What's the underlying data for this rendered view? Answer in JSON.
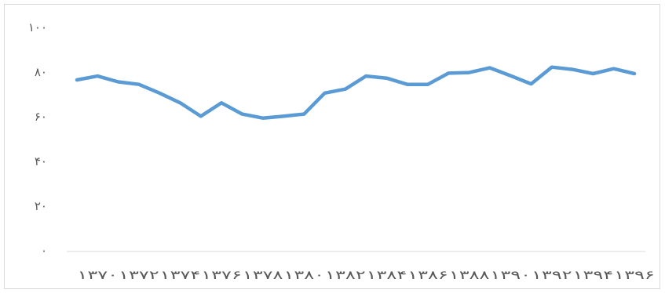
{
  "chart_data": {
    "type": "line",
    "title": "",
    "xlabel": "",
    "ylabel": "",
    "ylim": [
      0,
      100
    ],
    "yticks": [
      "۰",
      "۲۰",
      "۴۰",
      "۶۰",
      "۸۰",
      "۱۰۰"
    ],
    "ytick_values": [
      0,
      20,
      40,
      60,
      80,
      100
    ],
    "x": [
      1370,
      1371,
      1372,
      1373,
      1374,
      1375,
      1376,
      1377,
      1378,
      1379,
      1380,
      1381,
      1382,
      1383,
      1384,
      1385,
      1386,
      1387,
      1388,
      1389,
      1390,
      1391,
      1392,
      1393,
      1394,
      1395,
      1396,
      1397
    ],
    "xtick_labels": [
      "۱۳۷۰",
      "۱۳۷۲",
      "۱۳۷۴",
      "۱۳۷۶",
      "۱۳۷۸",
      "۱۳۸۰",
      "۱۳۸۲",
      "۱۳۸۴",
      "۱۳۸۶",
      "۱۳۸۸",
      "۱۳۹۰",
      "۱۳۹۲",
      "۱۳۹۴",
      "۱۳۹۶"
    ],
    "xtick_values": [
      1370,
      1372,
      1374,
      1376,
      1378,
      1380,
      1382,
      1384,
      1386,
      1388,
      1390,
      1392,
      1394,
      1396
    ],
    "series": [
      {
        "values": [
          76.5,
          78.2,
          75.6,
          74.5,
          70.6,
          66.2,
          60.2,
          66.2,
          61.2,
          59.4,
          60.2,
          61.2,
          70.6,
          72.4,
          78.2,
          77.3,
          74.5,
          74.5,
          79.5,
          79.8,
          81.9,
          78.4,
          74.7,
          82.2,
          81.2,
          79.3,
          81.5,
          79.3
        ]
      }
    ],
    "line_color": "#5b9bd5",
    "grid": false,
    "legend": "none"
  }
}
